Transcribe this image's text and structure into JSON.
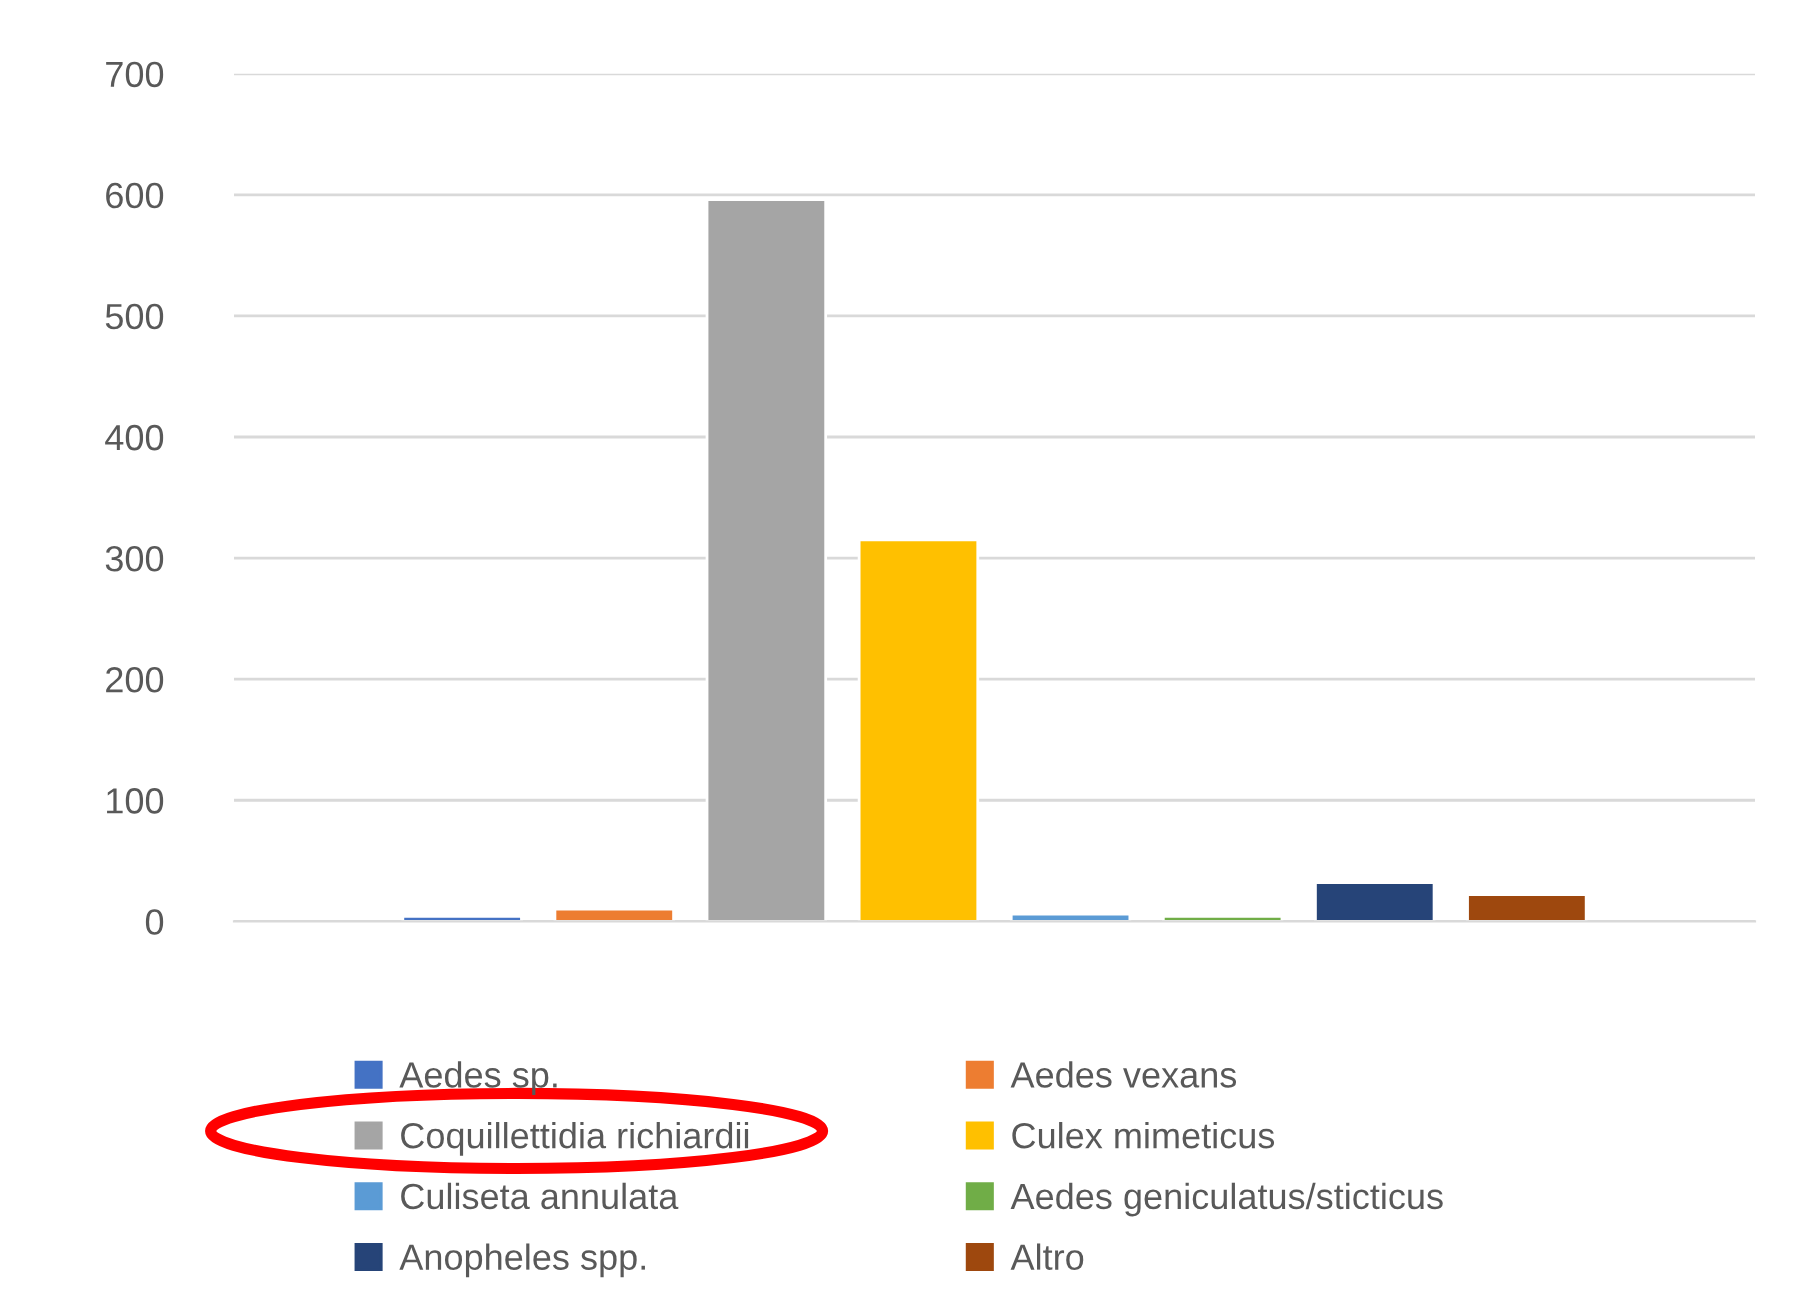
{
  "chart_data": {
    "type": "bar",
    "categories": [
      null
    ],
    "series": [
      {
        "name": "Aedes sp.",
        "color": "#4472c4",
        "values": [
          4
        ]
      },
      {
        "name": "Aedes vexans",
        "color": "#ed7d31",
        "values": [
          10
        ]
      },
      {
        "name": "Coquillettidia richiardii",
        "color": "#a5a5a5",
        "values": [
          596
        ]
      },
      {
        "name": "Culex mimeticus",
        "color": "#ffc000",
        "values": [
          315
        ]
      },
      {
        "name": "Culiseta annulata",
        "color": "#5b9bd5",
        "values": [
          6
        ]
      },
      {
        "name": "Aedes geniculatus/sticticus",
        "color": "#70ad47",
        "values": [
          4
        ]
      },
      {
        "name": "Anopheles spp.",
        "color": "#264478",
        "values": [
          32
        ]
      },
      {
        "name": "Altro",
        "color": "#9e480e",
        "values": [
          22
        ]
      }
    ],
    "ylim": [
      0,
      700
    ],
    "yticks": [
      0,
      100,
      200,
      300,
      400,
      500,
      600,
      700
    ],
    "grid": "y",
    "legend": "bottom"
  }
}
